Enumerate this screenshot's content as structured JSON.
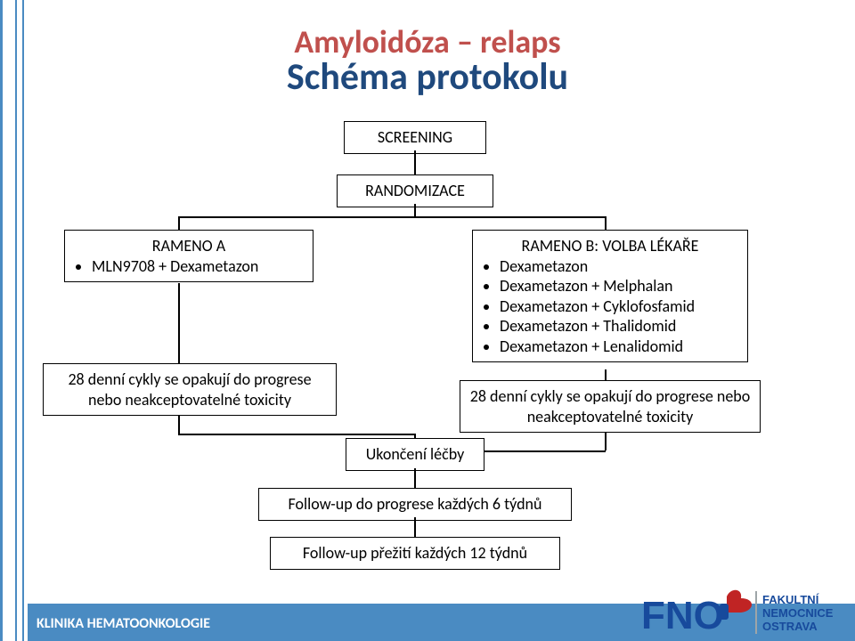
{
  "colors": {
    "accent": "#4a8bc2",
    "title": "#c0504d",
    "subtitle": "#1f497d",
    "box_border": "#000000",
    "connector": "#000000",
    "footer_bg": "#4a8bc2",
    "footer_text": "#ffffff",
    "logo_blue": "#174a9c",
    "logo_red": "#c02424",
    "logo_grey": "#9ea5a8"
  },
  "title": {
    "line1": "Amyloidóza – relaps",
    "line2": "Schéma protokolu",
    "fontsize1": 36,
    "fontsize2": 42
  },
  "boxes": {
    "screening": "SCREENING",
    "randomize": "RANDOMIZACE",
    "armA": {
      "header": "RAMENO A",
      "items": [
        "MLN9708 + Dexametazon"
      ]
    },
    "armB": {
      "header": "RAMENO B: VOLBA LÉKAŘE",
      "items": [
        "Dexametazon",
        "Dexametazon + Melphalan",
        "Dexametazon + Cyklofosfamid",
        "Dexametazon + Thalidomid",
        "Dexametazon + Lenalidomid"
      ]
    },
    "cycleA": "28 denní cykly se opakují do progrese nebo  neakceptovatelné toxicity",
    "cycleB": "28 denní cykly se opakují do progrese nebo  neakceptovatelné toxicity",
    "end": "Ukončení léčby",
    "fu1": "Follow-up do progrese každých 6 týdnů",
    "fu2": "Follow-up přežití každých  12 týdnů"
  },
  "footer": "KLINIKA HEMATOONKOLOGIE",
  "logo": {
    "text1": "FNO",
    "text2_lines": [
      "FAKULTNÍ",
      "NEMOCNICE",
      "OSTRAVA"
    ]
  }
}
